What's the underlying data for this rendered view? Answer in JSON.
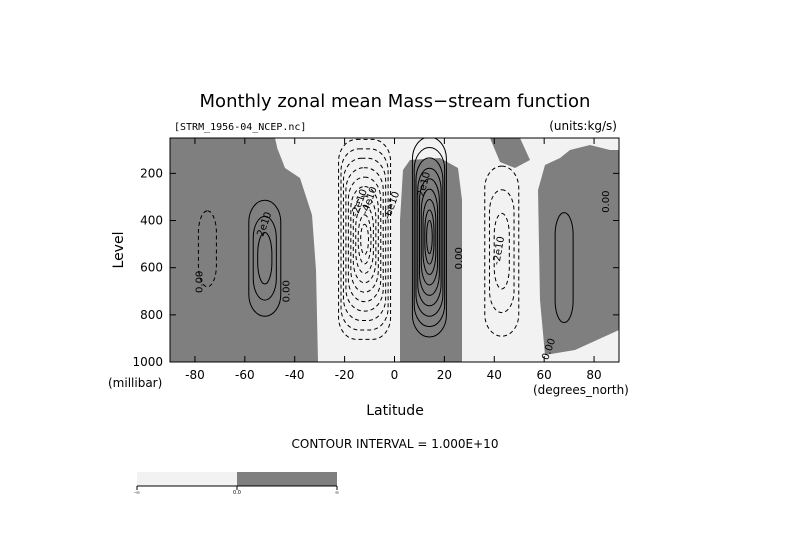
{
  "chart_data": {
    "type": "contour",
    "title": "Monthly zonal mean Mass−stream function",
    "file_label": "[STRM_1956-04_NCEP.nc]",
    "units_label": "(units:kg/s)",
    "xlabel": "Latitude",
    "ylabel": "Level",
    "x_unit_label": "(degrees_north)",
    "y_unit_label": "(millibar)",
    "xlim": [
      -90,
      90
    ],
    "ylim": [
      1000,
      50
    ],
    "x_ticks": [
      -80,
      -60,
      -40,
      -20,
      0,
      20,
      40,
      60,
      80
    ],
    "y_ticks": [
      200,
      400,
      600,
      800,
      1000
    ],
    "contour_interval_text": "CONTOUR INTERVAL = 1.000E+10",
    "contour_interval": 10000000000.0,
    "positive_shading": "#7f7f7f",
    "negative_shading": "#f2f2f2",
    "contour_labels": [
      "0.00",
      "2e10",
      "-2e10",
      "-4e10",
      "-6e10",
      "2e10",
      "-2e10",
      "0.00",
      "0.00",
      "0.00",
      "0.00"
    ],
    "cells": [
      {
        "sign": "negative",
        "center_lat": -75,
        "center_level": 520,
        "peak": -10000000000.0
      },
      {
        "sign": "positive",
        "center_lat": -52,
        "center_level": 560,
        "peak": 30000000000.0
      },
      {
        "sign": "negative",
        "center_lat": -12,
        "center_level": 480,
        "peak": -100000000000.0
      },
      {
        "sign": "positive",
        "center_lat": 14,
        "center_level": 470,
        "peak": 90000000000.0
      },
      {
        "sign": "negative",
        "center_lat": 43,
        "center_level": 530,
        "peak": -30000000000.0
      },
      {
        "sign": "positive",
        "center_lat": 68,
        "center_level": 600,
        "peak": 10000000000.0
      }
    ],
    "colorbar": {
      "labels": [
        "-∞",
        "0.0",
        "∞"
      ],
      "colors": [
        "#f2f2f2",
        "#7f7f7f"
      ]
    }
  }
}
